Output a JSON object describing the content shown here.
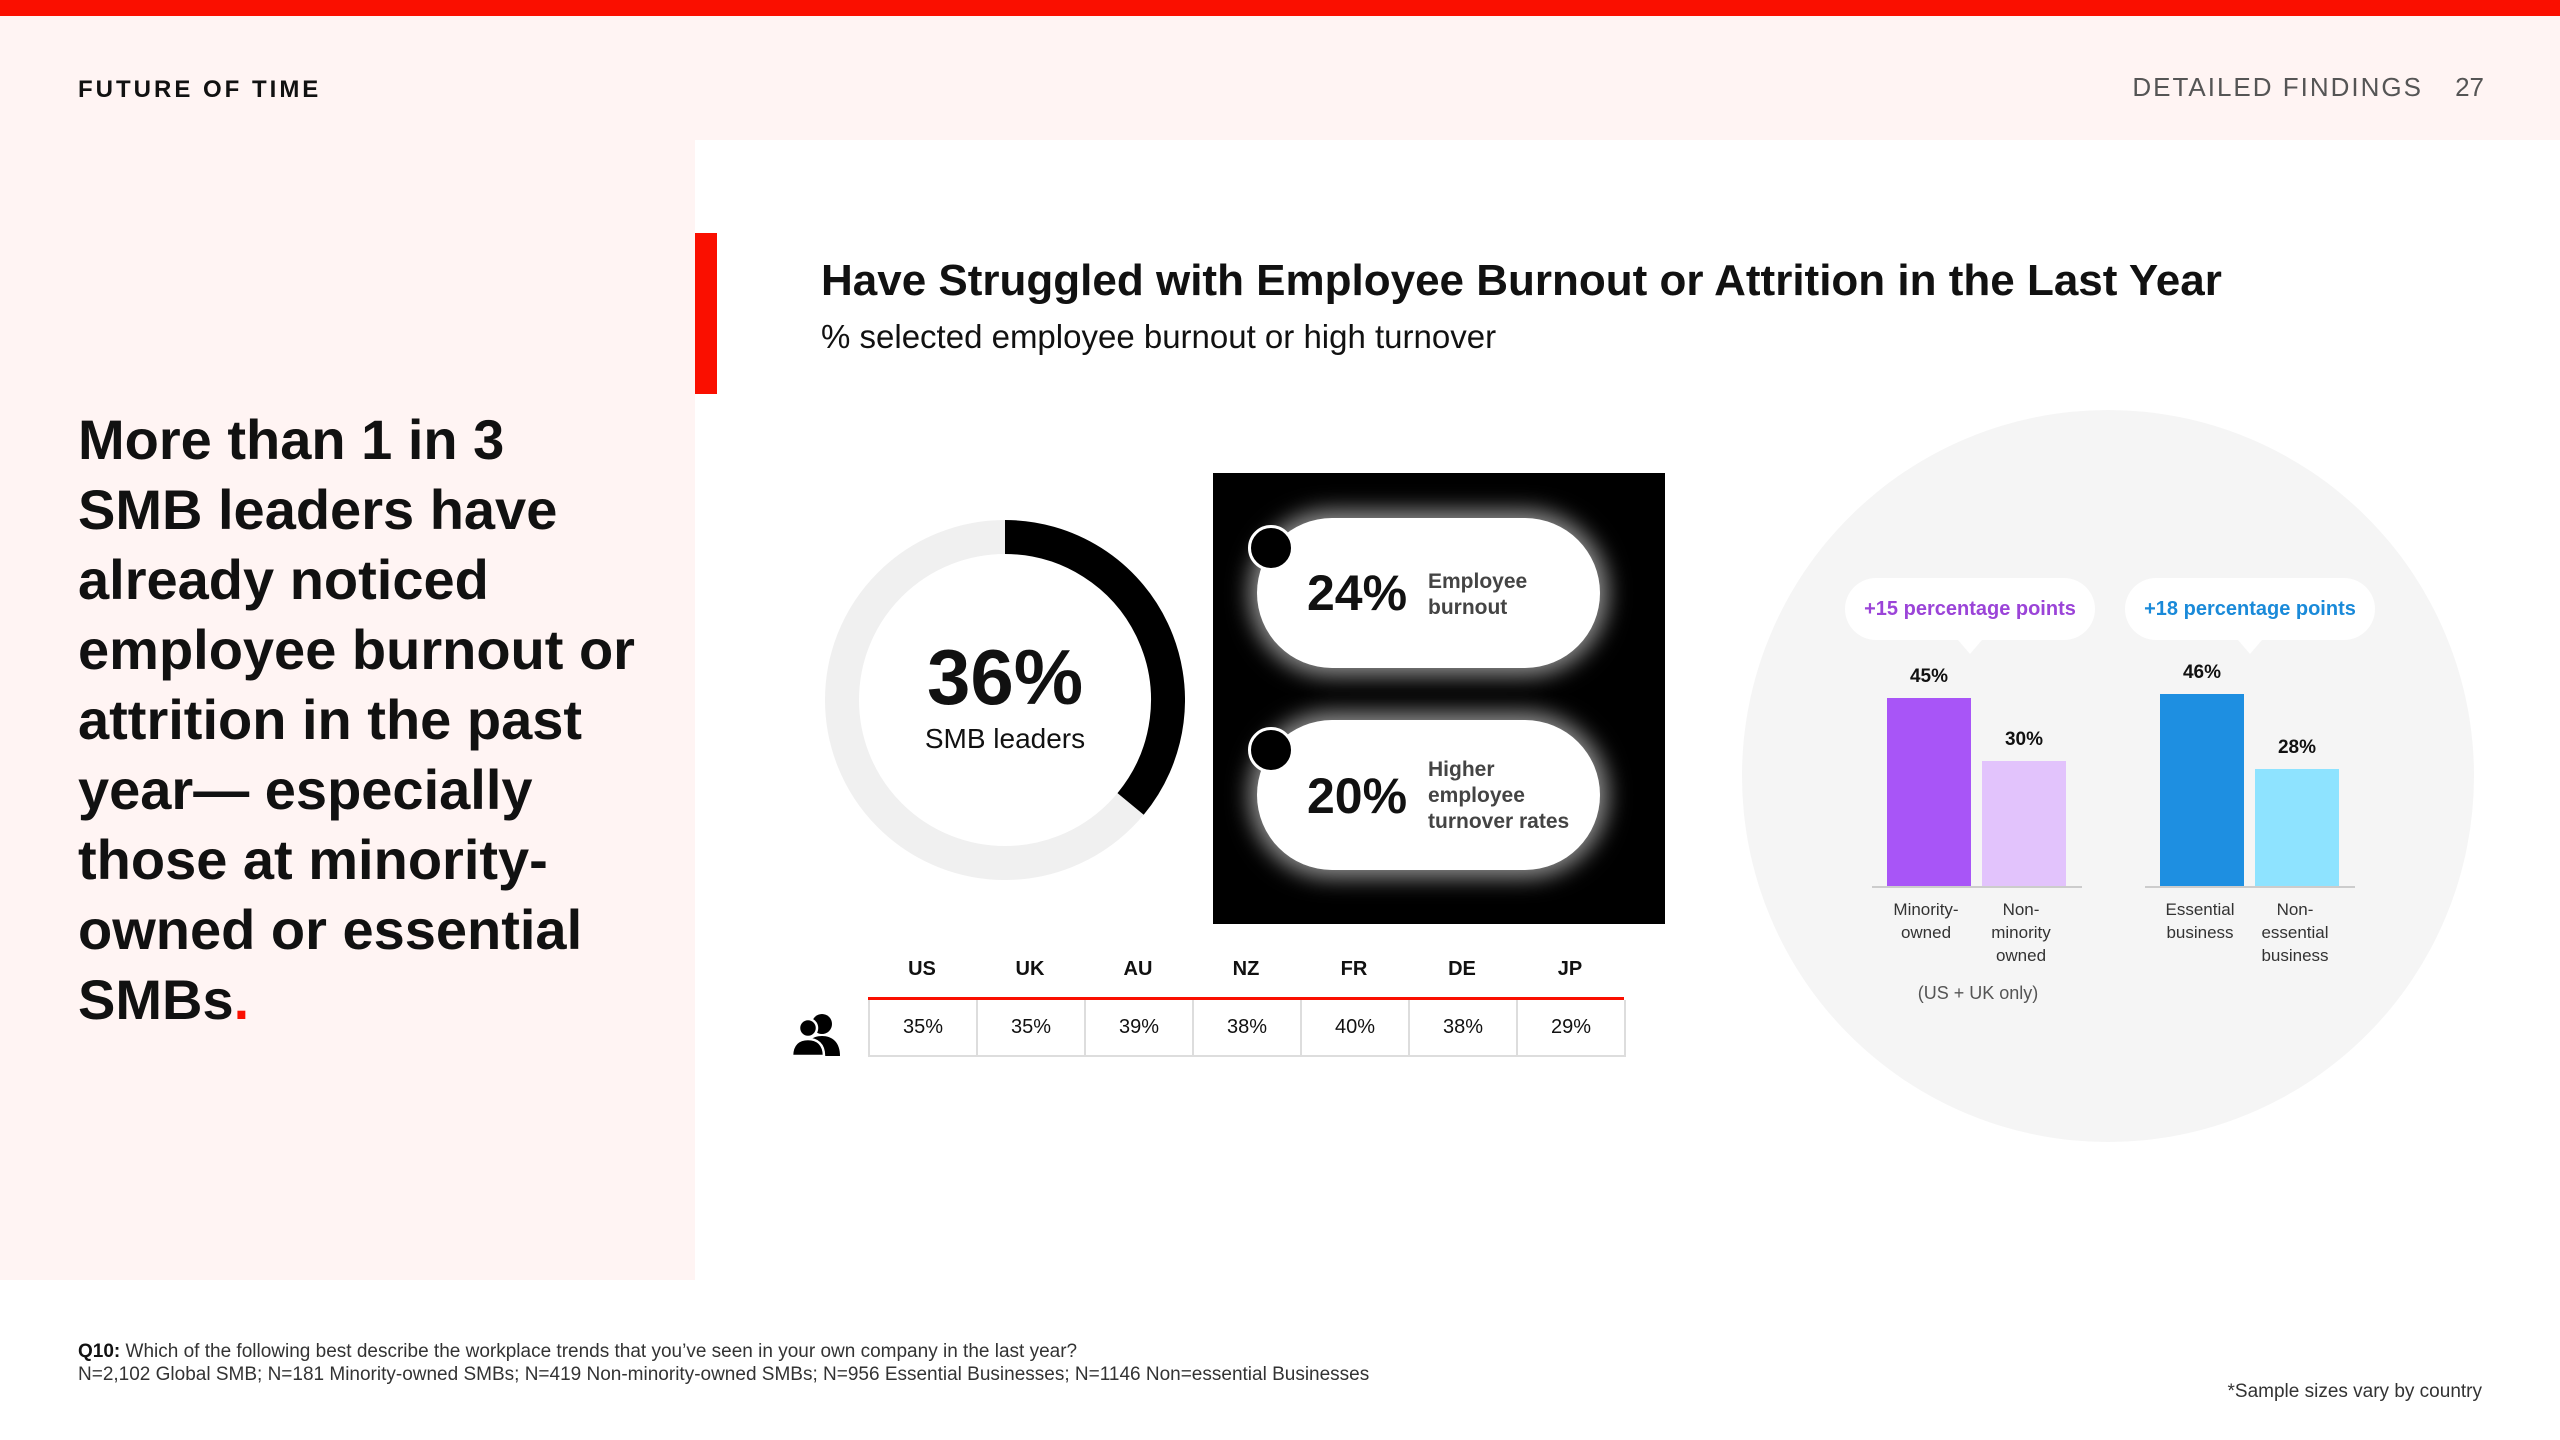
{
  "header": {
    "brand": "FUTURE OF TIME",
    "section": "DETAILED FINDINGS",
    "page_number": "27"
  },
  "headline": {
    "text": "More than 1 in 3 SMB leaders have already noticed employee burnout or attrition in the past year— especially those at minority-owned or essential SMBs",
    "dot": "."
  },
  "chart": {
    "title": "Have Struggled with Employee Burnout or Attrition in the Last Year",
    "subtitle": "% selected employee burnout or high turnover"
  },
  "chart_data": [
    {
      "type": "pie",
      "style": "donut",
      "value": 36,
      "value_label": "36%",
      "label": "SMB leaders",
      "colors": {
        "fill": "#000000",
        "track": "#f0f0f0"
      }
    },
    {
      "type": "table",
      "stats": [
        {
          "value": "24%",
          "label": "Employee burnout"
        },
        {
          "value": "20%",
          "label": "Higher employee turnover rates"
        }
      ]
    },
    {
      "type": "table",
      "columns": [
        "US",
        "UK",
        "AU",
        "NZ",
        "FR",
        "DE",
        "JP"
      ],
      "values": [
        "35%",
        "35%",
        "39%",
        "38%",
        "40%",
        "38%",
        "29%"
      ]
    },
    {
      "type": "bar",
      "groups": [
        {
          "callout": "+15 percentage points",
          "note": "(US + UK only)",
          "categories": [
            "Minority-owned",
            "Non-minority owned"
          ],
          "values": [
            45,
            30
          ],
          "labels": [
            "45%",
            "30%"
          ],
          "colors": [
            "#a855f7",
            "#e2c3fc"
          ]
        },
        {
          "callout": "+18 percentage points",
          "categories": [
            "Essential business",
            "Non-essential business"
          ],
          "values": [
            46,
            28
          ],
          "labels": [
            "46%",
            "28%"
          ],
          "colors": [
            "#1e8fe1",
            "#8ee3ff"
          ]
        }
      ]
    }
  ],
  "footer": {
    "q_label": "Q10:",
    "q_text": "Which of the following best describe the workplace trends that you’ve seen in your own company in the last year?",
    "sample_sizes": "N=2,102 Global SMB; N=181 Minority-owned SMBs; N=419 Non-minority-owned SMBs; N=956 Essential Businesses; N=1146 Non=essential Businesses",
    "sample_note": "*Sample sizes vary by country"
  },
  "icons": {
    "people": "people-icon"
  },
  "colors": {
    "accent": "#fa0f00",
    "panel_bg": "#fff4f3",
    "circle_bg": "#f5f5f5"
  }
}
